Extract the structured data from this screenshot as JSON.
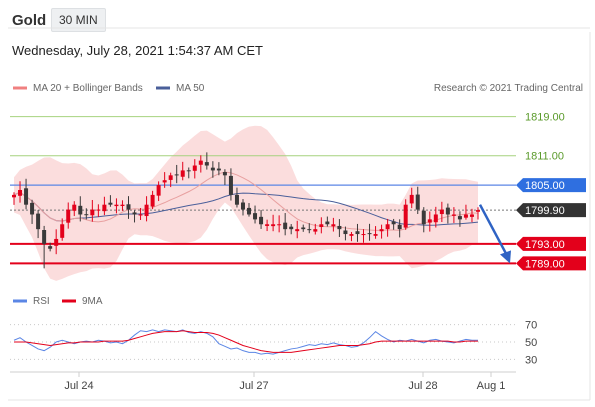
{
  "header": {
    "instrument": "Gold",
    "timeframe": "30 MIN",
    "datetime": "Wednesday, July 28, 2021 1:54:37 AM CET"
  },
  "legend": {
    "ma20_label": "MA 20 + Bollinger Bands",
    "ma50_label": "MA 50",
    "copyright": "Research © 2021 Trading Central",
    "rsi_label": "RSI",
    "rsi_ma_label": "9MA"
  },
  "colors": {
    "up": "#e3001b",
    "down": "#3a3a3a",
    "band": "#f9d2d2",
    "ma20": "#e8a0a0",
    "ma50": "#4a5f9a",
    "resistance_green": "#a6d27e",
    "pivot_blue": "#5b86e5",
    "support_red": "#e3001b",
    "rsi": "#5b86e5",
    "rsi_ma": "#e3001b"
  },
  "chart_data": {
    "type": "candlestick",
    "ylim": [
      1785,
      1823
    ],
    "x_ticks": [
      "Jul 24",
      "Jul 27",
      "Jul 28",
      "Aug 1"
    ],
    "levels": [
      {
        "value": 1819.0,
        "label": "1819.00",
        "kind": "resistance"
      },
      {
        "value": 1811.0,
        "label": "1811.00",
        "kind": "resistance"
      },
      {
        "value": 1805.0,
        "label": "1805.00",
        "kind": "pivot"
      },
      {
        "value": 1799.9,
        "label": "1799.90",
        "kind": "last"
      },
      {
        "value": 1793.0,
        "label": "1793.00",
        "kind": "support"
      },
      {
        "value": 1789.0,
        "label": "1789.00",
        "kind": "support"
      }
    ],
    "forecast": {
      "from": 1801.0,
      "to": 1789.0
    },
    "close": [
      1803,
      1804,
      1801,
      1799,
      1796,
      1793,
      1792,
      1794,
      1797,
      1800,
      1801,
      1799,
      1799,
      1800,
      1800,
      1801,
      1801,
      1801,
      1801,
      1800,
      1799,
      1799,
      1801,
      1803,
      1805,
      1806,
      1807,
      1807,
      1808,
      1808,
      1809,
      1810,
      1809,
      1808,
      1808,
      1807,
      1803,
      1801,
      1800,
      1799,
      1798,
      1797,
      1797,
      1797,
      1797,
      1796,
      1796,
      1796,
      1796,
      1796,
      1796,
      1797,
      1797,
      1797,
      1796,
      1795,
      1795,
      1795,
      1795,
      1795,
      1795,
      1796,
      1797,
      1797,
      1796,
      1801,
      1803,
      1800,
      1797,
      1798,
      1799,
      1800,
      1799,
      1799,
      1798,
      1799,
      1799,
      1799.9
    ],
    "rsi": {
      "ticks": [
        70,
        50,
        30
      ],
      "ylim": [
        20,
        80
      ],
      "rsi": [
        52,
        55,
        50,
        46,
        42,
        40,
        44,
        50,
        52,
        50,
        48,
        50,
        51,
        50,
        52,
        51,
        49,
        50,
        48,
        52,
        58,
        63,
        62,
        64,
        62,
        64,
        63,
        62,
        64,
        61,
        60,
        62,
        60,
        56,
        48,
        45,
        42,
        43,
        40,
        38,
        38,
        36,
        37,
        36,
        38,
        40,
        42,
        43,
        45,
        47,
        46,
        48,
        47,
        49,
        47,
        46,
        44,
        45,
        49,
        55,
        62,
        57,
        53,
        50,
        52,
        51,
        53,
        51,
        49,
        52,
        53,
        51,
        50,
        49,
        51,
        53,
        52,
        52
      ],
      "ma": [
        50,
        50,
        50,
        49,
        48,
        47,
        46,
        47,
        48,
        49,
        49,
        50,
        50,
        50,
        50,
        51,
        51,
        51,
        51,
        52,
        54,
        56,
        58,
        60,
        61,
        62,
        62,
        62,
        63,
        62,
        61,
        61,
        61,
        60,
        58,
        55,
        52,
        49,
        46,
        44,
        42,
        40,
        39,
        38,
        38,
        38,
        38,
        39,
        40,
        41,
        42,
        43,
        44,
        45,
        46,
        46,
        46,
        46,
        47,
        48,
        50,
        51,
        51,
        51,
        51,
        51,
        51,
        51,
        51,
        51,
        51,
        51,
        51,
        50,
        50,
        51,
        51,
        51
      ]
    }
  }
}
